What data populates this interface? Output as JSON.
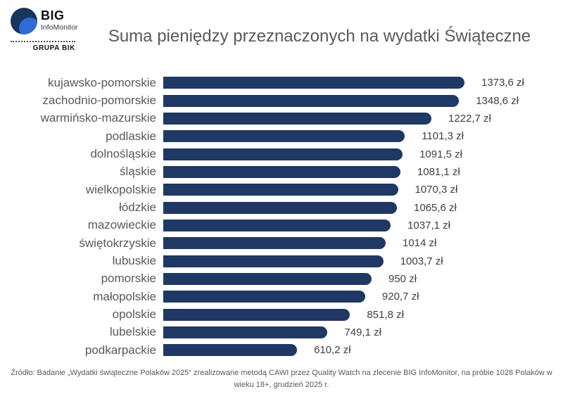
{
  "logo": {
    "brand": "BIG",
    "subbrand": "InfoMonitor",
    "group": "GRUPA BIK",
    "navy": "#17365d",
    "light_blue": "#2e6bd4"
  },
  "title": "Suma pieniędzy przeznaczonych na wydatki Świąteczne",
  "footer": {
    "line1": "Źródło: Badanie „Wydatki świąteczne Polaków 2025“ zrealizowane metodą CAWI przez Quality Watch na zlecenie BIG InfoMonitor, na próbie 1028 Polaków w",
    "line2": "wieku 18+, grudzień 2025 r."
  },
  "chart_data": {
    "type": "bar",
    "orientation": "horizontal",
    "title": "Suma pieniędzy przeznaczonych na wydatki Świąteczne",
    "unit": "zł",
    "bar_color": "#1f3864",
    "xlim": [
      0,
      1400
    ],
    "grid": false,
    "legend": false,
    "categories": [
      "kujawsko-pomorskie",
      "zachodnio-pomorskie",
      "warmińsko-mazurskie",
      "podlaskie",
      "dolnośląskie",
      "śląskie",
      "wielkopolskie",
      "łódzkie",
      "mazowieckie",
      "świętokrzyskie",
      "lubuskie",
      "pomorskie",
      "małopolskie",
      "opolskie",
      "lubelskie",
      "podkarpackie"
    ],
    "values": [
      1373.6,
      1348.6,
      1222.7,
      1101.3,
      1091.5,
      1081.1,
      1070.3,
      1065.6,
      1037.1,
      1014,
      1003.7,
      950,
      920.7,
      851.8,
      749.1,
      610.2
    ],
    "value_labels": [
      "1373,6 zł",
      "1348,6 zł",
      "1222,7 zł",
      "1101,3 zł",
      "1091,5 zł",
      "1081,1 zł",
      "1070,3 zł",
      "1065,6 zł",
      "1037,1 zł",
      "1014 zł",
      "1003,7 zł",
      "950 zł",
      "920,7 zł",
      "851,8 zł",
      "749,1 zł",
      "610,2 zł"
    ]
  }
}
